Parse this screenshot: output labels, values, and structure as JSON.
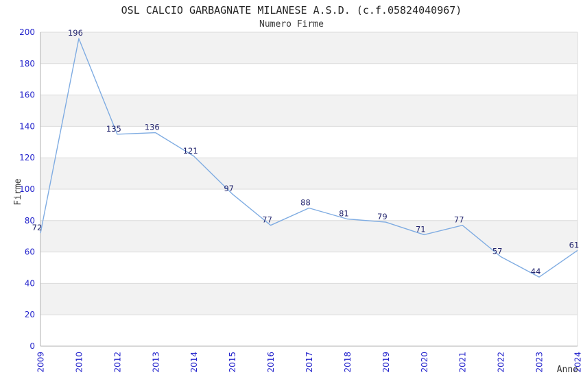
{
  "header": {
    "title": "OSL CALCIO GARBAGNATE MILANESE A.S.D. (c.f.05824040967)",
    "subtitle": "Numero Firme"
  },
  "chart_data": {
    "type": "line",
    "title": "OSL CALCIO GARBAGNATE MILANESE A.S.D. (c.f.05824040967)",
    "subtitle": "Numero Firme",
    "xlabel": "Anno",
    "ylabel": "Firme",
    "x": [
      "2009",
      "2010",
      "2012",
      "2013",
      "2014",
      "2015",
      "2016",
      "2017",
      "2018",
      "2019",
      "2020",
      "2021",
      "2022",
      "2023",
      "2024"
    ],
    "series": [
      {
        "name": "Numero Firme",
        "values": [
          72,
          196,
          135,
          136,
          121,
          97,
          77,
          88,
          81,
          79,
          71,
          77,
          57,
          44,
          61
        ]
      }
    ],
    "ylim": [
      0,
      200
    ],
    "ytick_step": 20,
    "grid": "horizontal",
    "banded_background": true,
    "data_labels": true,
    "legend": "none"
  },
  "colors": {
    "background": "#FFFFFF",
    "band": "#F2F2F2",
    "gridline": "#DBDBDB",
    "axis": "#B0B0B0",
    "line": "#7FACE2",
    "tick_label": "#2323CC",
    "data_label": "#23256E",
    "title": "#222222",
    "subtitle": "#3A3A3A",
    "axis_title": "#333333"
  }
}
